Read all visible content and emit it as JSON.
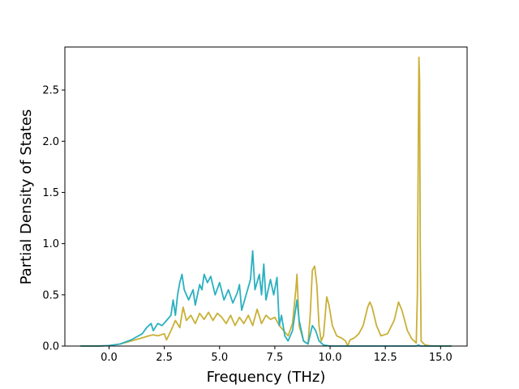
{
  "chart_data": {
    "type": "line",
    "xlabel": "Frequency (THz)",
    "ylabel": "Partial Density of States",
    "xlim": [
      -2.0,
      16.2
    ],
    "ylim": [
      0.0,
      2.92
    ],
    "x_ticks": [
      0.0,
      2.5,
      5.0,
      7.5,
      10.0,
      12.5,
      15.0
    ],
    "x_tick_labels": [
      "0.0",
      "2.5",
      "5.0",
      "7.5",
      "10.0",
      "12.5",
      "15.0"
    ],
    "y_ticks": [
      0.0,
      0.5,
      1.0,
      1.5,
      2.0,
      2.5
    ],
    "y_tick_labels": [
      "0.0",
      "0.5",
      "1.0",
      "1.5",
      "2.0",
      "2.5"
    ],
    "grid": false,
    "legend": "none",
    "series": [
      {
        "color": "#c9b037",
        "points": [
          [
            -1.3,
            0.0
          ],
          [
            -0.5,
            0.0
          ],
          [
            0.0,
            0.005
          ],
          [
            0.5,
            0.02
          ],
          [
            1.0,
            0.05
          ],
          [
            1.5,
            0.08
          ],
          [
            1.8,
            0.1
          ],
          [
            2.0,
            0.11
          ],
          [
            2.2,
            0.1
          ],
          [
            2.5,
            0.12
          ],
          [
            2.6,
            0.06
          ],
          [
            2.8,
            0.15
          ],
          [
            3.0,
            0.25
          ],
          [
            3.2,
            0.18
          ],
          [
            3.35,
            0.38
          ],
          [
            3.5,
            0.25
          ],
          [
            3.7,
            0.3
          ],
          [
            3.9,
            0.22
          ],
          [
            4.1,
            0.32
          ],
          [
            4.3,
            0.26
          ],
          [
            4.5,
            0.33
          ],
          [
            4.7,
            0.25
          ],
          [
            4.9,
            0.32
          ],
          [
            5.1,
            0.28
          ],
          [
            5.3,
            0.22
          ],
          [
            5.5,
            0.3
          ],
          [
            5.7,
            0.2
          ],
          [
            5.9,
            0.28
          ],
          [
            6.1,
            0.22
          ],
          [
            6.3,
            0.3
          ],
          [
            6.5,
            0.2
          ],
          [
            6.7,
            0.36
          ],
          [
            6.9,
            0.22
          ],
          [
            7.1,
            0.3
          ],
          [
            7.3,
            0.26
          ],
          [
            7.5,
            0.28
          ],
          [
            7.7,
            0.2
          ],
          [
            7.9,
            0.15
          ],
          [
            8.1,
            0.1
          ],
          [
            8.3,
            0.22
          ],
          [
            8.45,
            0.55
          ],
          [
            8.5,
            0.7
          ],
          [
            8.6,
            0.2
          ],
          [
            8.8,
            0.05
          ],
          [
            9.0,
            0.02
          ],
          [
            9.1,
            0.3
          ],
          [
            9.2,
            0.74
          ],
          [
            9.3,
            0.78
          ],
          [
            9.4,
            0.6
          ],
          [
            9.5,
            0.2
          ],
          [
            9.6,
            0.05
          ],
          [
            9.7,
            0.1
          ],
          [
            9.85,
            0.48
          ],
          [
            9.95,
            0.4
          ],
          [
            10.1,
            0.2
          ],
          [
            10.3,
            0.1
          ],
          [
            10.5,
            0.08
          ],
          [
            10.7,
            0.05
          ],
          [
            10.8,
            0.0
          ],
          [
            10.9,
            0.06
          ],
          [
            11.1,
            0.08
          ],
          [
            11.3,
            0.12
          ],
          [
            11.5,
            0.2
          ],
          [
            11.7,
            0.38
          ],
          [
            11.8,
            0.43
          ],
          [
            11.9,
            0.38
          ],
          [
            12.1,
            0.2
          ],
          [
            12.3,
            0.1
          ],
          [
            12.6,
            0.12
          ],
          [
            12.9,
            0.25
          ],
          [
            13.1,
            0.43
          ],
          [
            13.25,
            0.35
          ],
          [
            13.5,
            0.15
          ],
          [
            13.7,
            0.07
          ],
          [
            13.9,
            0.03
          ],
          [
            13.95,
            0.5
          ],
          [
            14.0,
            2.2
          ],
          [
            14.02,
            2.82
          ],
          [
            14.05,
            2.6
          ],
          [
            14.08,
            1.0
          ],
          [
            14.12,
            0.05
          ],
          [
            14.3,
            0.01
          ],
          [
            14.6,
            0.0
          ],
          [
            15.0,
            0.0
          ],
          [
            15.5,
            0.0
          ]
        ]
      },
      {
        "color": "#2ab0c0",
        "points": [
          [
            -1.3,
            0.0
          ],
          [
            -0.5,
            0.0
          ],
          [
            0.0,
            0.005
          ],
          [
            0.5,
            0.02
          ],
          [
            1.0,
            0.06
          ],
          [
            1.5,
            0.12
          ],
          [
            1.7,
            0.18
          ],
          [
            1.9,
            0.22
          ],
          [
            2.0,
            0.15
          ],
          [
            2.2,
            0.22
          ],
          [
            2.4,
            0.2
          ],
          [
            2.6,
            0.25
          ],
          [
            2.8,
            0.3
          ],
          [
            2.9,
            0.45
          ],
          [
            3.0,
            0.3
          ],
          [
            3.1,
            0.5
          ],
          [
            3.2,
            0.62
          ],
          [
            3.3,
            0.7
          ],
          [
            3.4,
            0.55
          ],
          [
            3.6,
            0.45
          ],
          [
            3.8,
            0.55
          ],
          [
            3.9,
            0.4
          ],
          [
            4.1,
            0.6
          ],
          [
            4.2,
            0.55
          ],
          [
            4.3,
            0.7
          ],
          [
            4.45,
            0.62
          ],
          [
            4.6,
            0.68
          ],
          [
            4.8,
            0.5
          ],
          [
            5.0,
            0.62
          ],
          [
            5.2,
            0.45
          ],
          [
            5.4,
            0.55
          ],
          [
            5.6,
            0.42
          ],
          [
            5.8,
            0.52
          ],
          [
            5.9,
            0.6
          ],
          [
            6.0,
            0.35
          ],
          [
            6.2,
            0.5
          ],
          [
            6.4,
            0.65
          ],
          [
            6.5,
            0.93
          ],
          [
            6.6,
            0.55
          ],
          [
            6.8,
            0.7
          ],
          [
            6.9,
            0.5
          ],
          [
            7.0,
            0.8
          ],
          [
            7.1,
            0.45
          ],
          [
            7.3,
            0.65
          ],
          [
            7.45,
            0.5
          ],
          [
            7.6,
            0.67
          ],
          [
            7.7,
            0.2
          ],
          [
            7.8,
            0.3
          ],
          [
            7.95,
            0.1
          ],
          [
            8.1,
            0.05
          ],
          [
            8.3,
            0.15
          ],
          [
            8.5,
            0.45
          ],
          [
            8.6,
            0.25
          ],
          [
            8.8,
            0.05
          ],
          [
            9.0,
            0.02
          ],
          [
            9.2,
            0.2
          ],
          [
            9.35,
            0.15
          ],
          [
            9.5,
            0.05
          ],
          [
            9.7,
            0.01
          ],
          [
            10.0,
            0.0
          ],
          [
            11.0,
            0.0
          ],
          [
            12.0,
            0.0
          ],
          [
            13.0,
            0.0
          ],
          [
            13.9,
            0.0
          ],
          [
            14.0,
            0.01
          ],
          [
            14.1,
            0.0
          ],
          [
            15.0,
            0.0
          ],
          [
            15.5,
            0.0
          ]
        ]
      }
    ]
  }
}
